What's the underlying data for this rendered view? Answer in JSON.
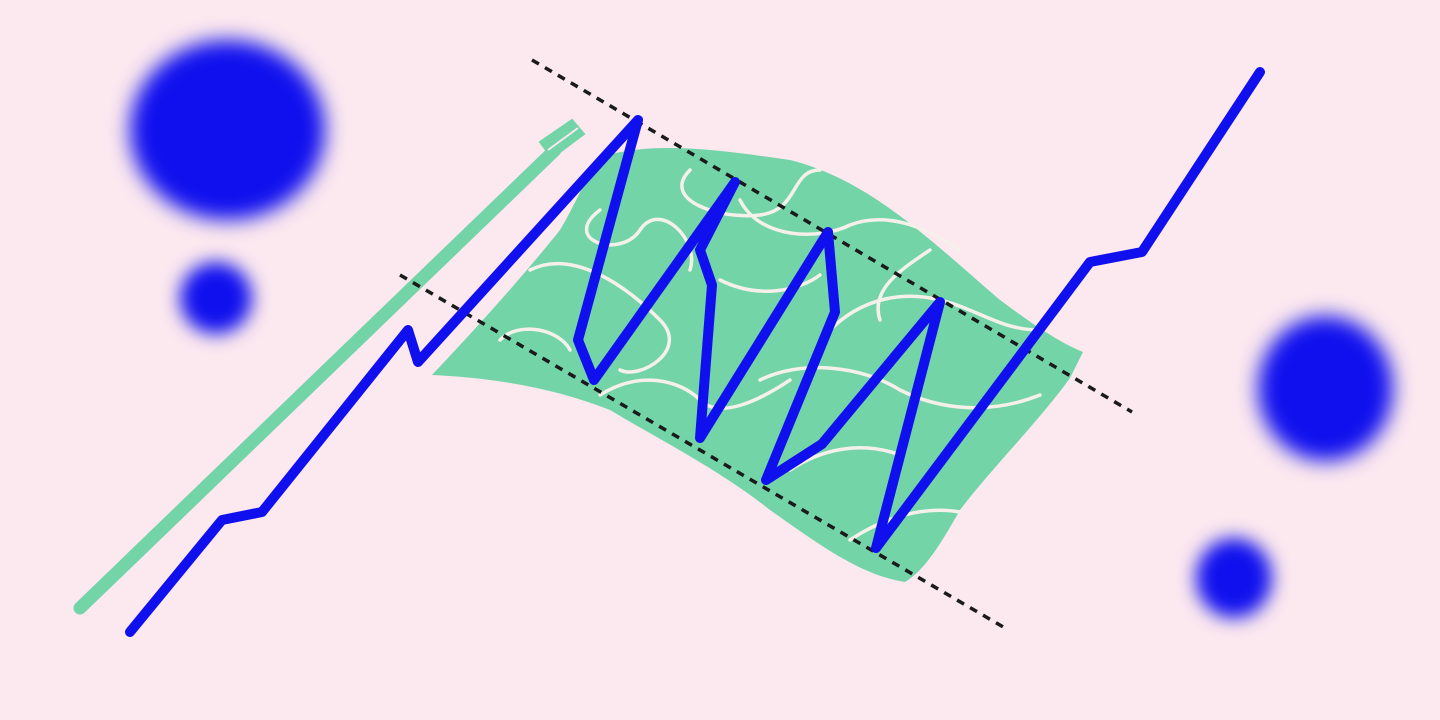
{
  "illustration": {
    "subject": "flag-pattern-illustration",
    "colors": {
      "background": "#fce8ef",
      "accent_blue": "#1010ee",
      "flag_green": "#73d4a8",
      "flag_swirl": "#f5f0ea",
      "trendline_dashes": "#1a1a1a"
    },
    "icons": [
      "flag-icon",
      "flagpole-icon",
      "price-line-icon",
      "channel-line-icon",
      "blur-circle-icon"
    ]
  }
}
